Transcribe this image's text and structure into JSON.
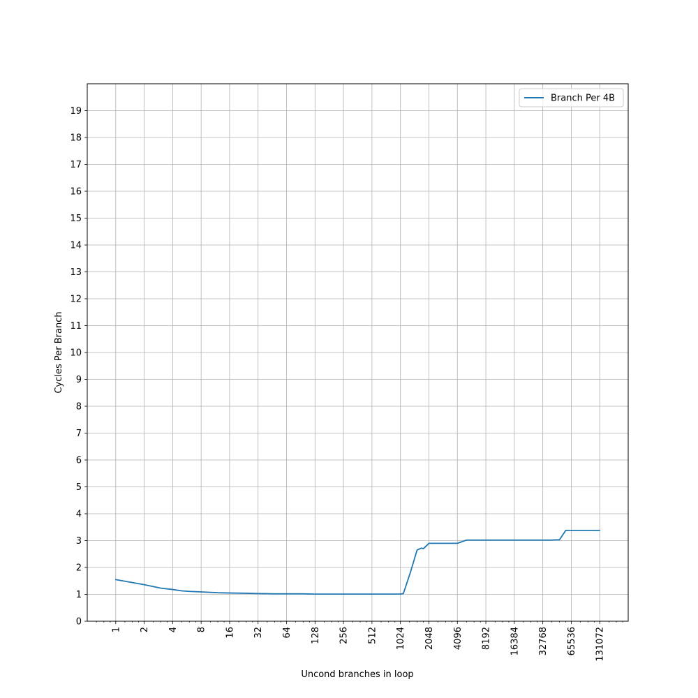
{
  "chart_data": {
    "type": "line",
    "xlabel": "Uncond branches in loop",
    "ylabel": "Cycles Per Branch",
    "x_scale": "log2",
    "xlim": [
      0.5,
      262144
    ],
    "ylim": [
      0,
      20
    ],
    "grid": true,
    "legend_position": "upper right",
    "x_ticks": [
      1,
      2,
      4,
      8,
      16,
      32,
      64,
      128,
      256,
      512,
      1024,
      2048,
      4096,
      8192,
      16384,
      32768,
      65536,
      131072
    ],
    "x_tick_labels": [
      "1",
      "2",
      "4",
      "8",
      "16",
      "32",
      "64",
      "128",
      "256",
      "512",
      "1024",
      "2048",
      "4096",
      "8192",
      "16384",
      "32768",
      "65536",
      "131072"
    ],
    "y_ticks": [
      0,
      1,
      2,
      3,
      4,
      5,
      6,
      7,
      8,
      9,
      10,
      11,
      12,
      13,
      14,
      15,
      16,
      17,
      18,
      19
    ],
    "y_tick_labels": [
      "0",
      "1",
      "2",
      "3",
      "4",
      "5",
      "6",
      "7",
      "8",
      "9",
      "10",
      "11",
      "12",
      "13",
      "14",
      "15",
      "16",
      "17",
      "18",
      "19"
    ],
    "series": [
      {
        "name": "Branch Per 4B",
        "color": "#1f77b4",
        "x": [
          1,
          2,
          3,
          4,
          5,
          6,
          8,
          12,
          16,
          24,
          32,
          48,
          64,
          96,
          128,
          192,
          256,
          384,
          512,
          768,
          1024,
          1100,
          1300,
          1536,
          1700,
          1792,
          2048,
          2560,
          3072,
          4096,
          5120,
          6144,
          8192,
          12288,
          16384,
          24576,
          32768,
          40000,
          45000,
          49152,
          57344,
          65536,
          98304,
          131072
        ],
        "y": [
          1.55,
          1.36,
          1.23,
          1.18,
          1.13,
          1.11,
          1.09,
          1.06,
          1.05,
          1.04,
          1.03,
          1.02,
          1.02,
          1.02,
          1.01,
          1.01,
          1.01,
          1.01,
          1.01,
          1.01,
          1.01,
          1.03,
          1.8,
          2.65,
          2.72,
          2.7,
          2.9,
          2.9,
          2.9,
          2.9,
          3.02,
          3.02,
          3.02,
          3.02,
          3.02,
          3.02,
          3.02,
          3.02,
          3.03,
          3.03,
          3.38,
          3.38,
          3.38,
          3.38
        ]
      }
    ]
  }
}
